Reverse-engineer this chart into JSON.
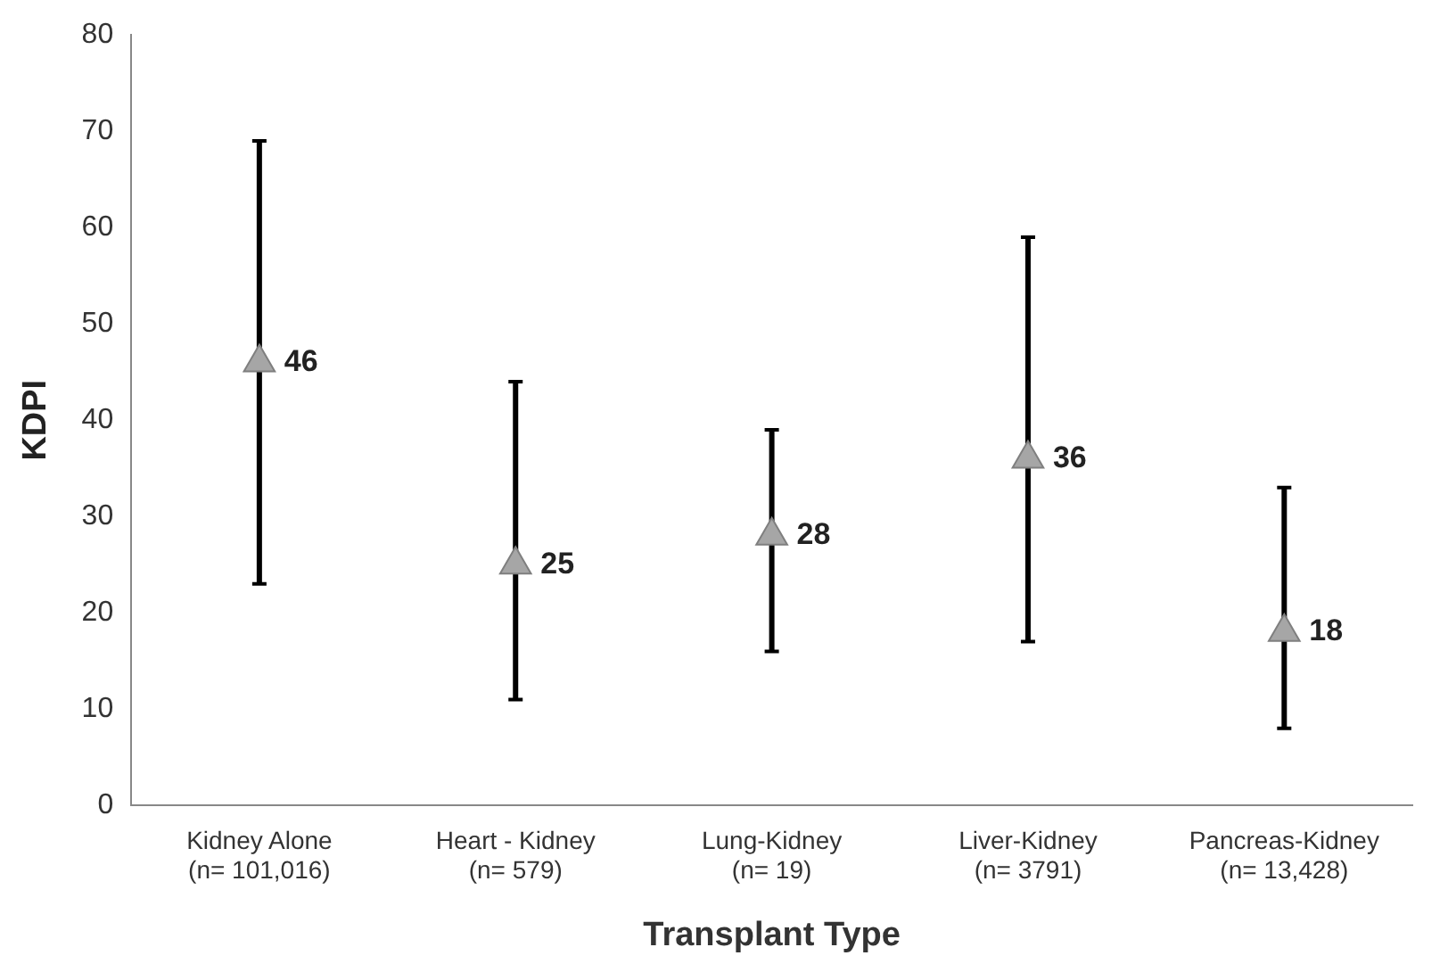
{
  "chart_data": {
    "type": "scatter",
    "xlabel": "Transplant Type",
    "ylabel": "KDPI",
    "categories": [
      "Kidney Alone\n(n= 101,016)",
      "Heart - Kidney\n(n= 579)",
      "Lung-Kidney\n(n= 19)",
      "Liver-Kidney\n(n= 3791)",
      "Pancreas-Kidney\n(n= 13,428)"
    ],
    "values": [
      46,
      25,
      28,
      36,
      18
    ],
    "errors": [
      [
        23,
        69
      ],
      [
        11,
        44
      ],
      [
        16,
        39
      ],
      [
        17,
        59
      ],
      [
        8,
        33
      ]
    ],
    "color": "#a6a6a6",
    "marker": "triangle",
    "data_labels": true,
    "grid": false,
    "legend": false,
    "ylim": [
      0,
      80
    ],
    "yticks": [
      0,
      10,
      20,
      30,
      40,
      50,
      60,
      70,
      80
    ]
  }
}
